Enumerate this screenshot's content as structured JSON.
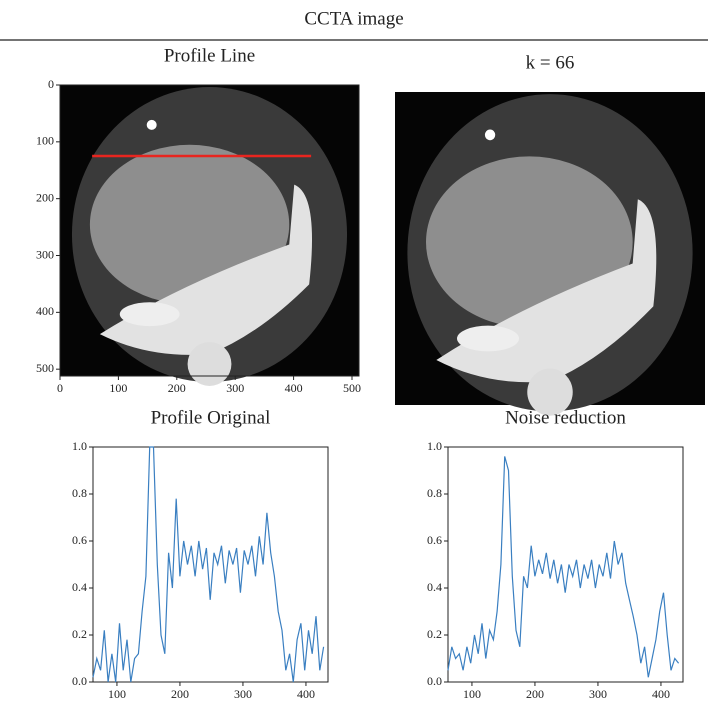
{
  "title": "CCTA image",
  "chart_data": [
    {
      "type": "image",
      "title": "Profile Line",
      "xlim": [
        0,
        512
      ],
      "ylim": [
        512,
        0
      ],
      "xticks": [
        0,
        100,
        200,
        300,
        400,
        500
      ],
      "yticks": [
        0,
        100,
        200,
        300,
        400,
        500
      ],
      "profile_line": {
        "x": [
          55,
          430
        ],
        "y": [
          125,
          125
        ],
        "color": "#e8251f"
      }
    },
    {
      "type": "image",
      "title": "k = 66"
    },
    {
      "type": "line",
      "title": "Profile Original",
      "xlim": [
        62,
        435
      ],
      "ylim": [
        0,
        1
      ],
      "xticks": [
        100,
        200,
        300,
        400
      ],
      "yticks": [
        {
          "value": 0,
          "label": "0.0"
        },
        0.2,
        0.4,
        0.6,
        0.8,
        {
          "value": 1,
          "label": "1.0"
        }
      ],
      "color": "#3a7fc1",
      "x": [
        62,
        68,
        74,
        80,
        86,
        92,
        98,
        104,
        110,
        116,
        122,
        128,
        134,
        140,
        146,
        152,
        158,
        164,
        170,
        176,
        182,
        188,
        194,
        200,
        206,
        212,
        218,
        224,
        230,
        236,
        242,
        248,
        254,
        260,
        266,
        272,
        278,
        284,
        290,
        296,
        302,
        308,
        314,
        320,
        326,
        332,
        338,
        344,
        350,
        356,
        362,
        368,
        374,
        380,
        386,
        392,
        398,
        404,
        410,
        416,
        422,
        428
      ],
      "values": [
        0.02,
        0.1,
        0.05,
        0.22,
        0.0,
        0.12,
        0.0,
        0.25,
        0.05,
        0.18,
        0.0,
        0.1,
        0.12,
        0.3,
        0.45,
        1.0,
        1.0,
        0.5,
        0.2,
        0.12,
        0.55,
        0.4,
        0.78,
        0.45,
        0.6,
        0.5,
        0.58,
        0.45,
        0.6,
        0.48,
        0.57,
        0.35,
        0.55,
        0.5,
        0.58,
        0.42,
        0.56,
        0.5,
        0.57,
        0.38,
        0.56,
        0.5,
        0.58,
        0.45,
        0.62,
        0.5,
        0.72,
        0.55,
        0.45,
        0.3,
        0.22,
        0.05,
        0.12,
        0.0,
        0.18,
        0.25,
        0.05,
        0.22,
        0.12,
        0.28,
        0.05,
        0.15
      ]
    },
    {
      "type": "line",
      "title": "Noise reduction",
      "xlim": [
        62,
        435
      ],
      "ylim": [
        0,
        1
      ],
      "xticks": [
        100,
        200,
        300,
        400
      ],
      "yticks": [
        {
          "value": 0,
          "label": "0.0"
        },
        0.2,
        0.4,
        0.6,
        0.8,
        {
          "value": 1,
          "label": "1.0"
        }
      ],
      "color": "#3a7fc1",
      "x": [
        62,
        68,
        74,
        80,
        86,
        92,
        98,
        104,
        110,
        116,
        122,
        128,
        134,
        140,
        146,
        152,
        158,
        164,
        170,
        176,
        182,
        188,
        194,
        200,
        206,
        212,
        218,
        224,
        230,
        236,
        242,
        248,
        254,
        260,
        266,
        272,
        278,
        284,
        290,
        296,
        302,
        308,
        314,
        320,
        326,
        332,
        338,
        344,
        350,
        356,
        362,
        368,
        374,
        380,
        386,
        392,
        398,
        404,
        410,
        416,
        422,
        428
      ],
      "values": [
        0.05,
        0.15,
        0.1,
        0.12,
        0.05,
        0.15,
        0.08,
        0.2,
        0.12,
        0.25,
        0.1,
        0.22,
        0.18,
        0.3,
        0.5,
        0.96,
        0.9,
        0.45,
        0.22,
        0.15,
        0.45,
        0.4,
        0.58,
        0.45,
        0.52,
        0.46,
        0.55,
        0.44,
        0.52,
        0.42,
        0.5,
        0.38,
        0.5,
        0.45,
        0.52,
        0.4,
        0.5,
        0.44,
        0.52,
        0.4,
        0.5,
        0.45,
        0.55,
        0.44,
        0.6,
        0.5,
        0.55,
        0.42,
        0.35,
        0.28,
        0.2,
        0.08,
        0.15,
        0.02,
        0.1,
        0.18,
        0.3,
        0.38,
        0.2,
        0.05,
        0.1,
        0.08
      ]
    }
  ]
}
